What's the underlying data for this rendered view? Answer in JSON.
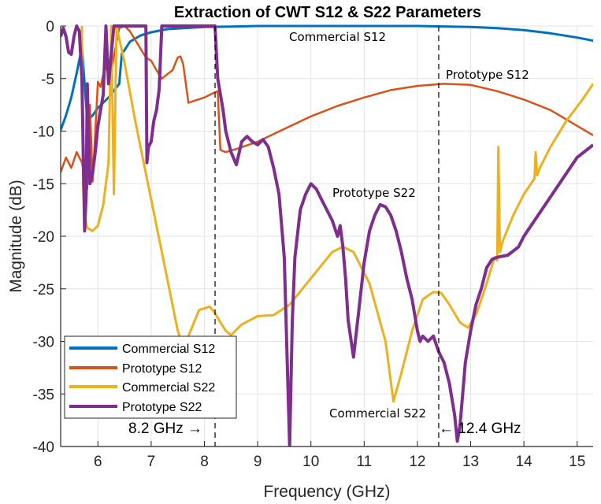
{
  "chart_data": {
    "type": "line",
    "title": "Extraction of CWT S12 & S22 Parameters",
    "xlabel": "Frequency (GHz)",
    "ylabel": "Magnitude (dB)",
    "xlim": [
      5.3,
      15.3
    ],
    "ylim": [
      -40,
      0
    ],
    "xticks": [
      6,
      7,
      8,
      9,
      10,
      11,
      12,
      13,
      14,
      15
    ],
    "yticks": [
      0,
      -5,
      -10,
      -15,
      -20,
      -25,
      -30,
      -35,
      -40
    ],
    "xtick_labels": [
      "6",
      "7",
      "8",
      "9",
      "10",
      "11",
      "12",
      "13",
      "14",
      "15"
    ],
    "ytick_labels": [
      "0",
      "-5",
      "-10",
      "-15",
      "-20",
      "-25",
      "-30",
      "-35",
      "-40"
    ],
    "grid": true,
    "legend_position": "bottom-left",
    "series": [
      {
        "name": "Commercial S12",
        "color": "#0072BD",
        "x": [
          5.3,
          5.4,
          5.5,
          5.6,
          5.7,
          5.8,
          5.9,
          6.0,
          6.2,
          6.4,
          6.45,
          6.5,
          6.6,
          6.8,
          7.0,
          7.3,
          7.6,
          8.0,
          8.5,
          9.0,
          10.0,
          11.0,
          12.0,
          13.0,
          13.5,
          14.0,
          14.5,
          15.0,
          15.3
        ],
        "y": [
          -9.9,
          -8.5,
          -6.8,
          -4.5,
          -2.0,
          -9.0,
          -8.5,
          -7.8,
          -6.8,
          -5.5,
          -2.6,
          -2.3,
          -1.5,
          -0.9,
          -0.6,
          -0.3,
          -0.2,
          -0.1,
          -0.05,
          0,
          0,
          0,
          0,
          -0.1,
          -0.2,
          -0.4,
          -0.7,
          -1.1,
          -1.4
        ]
      },
      {
        "name": "Prototype S12",
        "color": "#D95319",
        "x": [
          5.3,
          5.4,
          5.5,
          5.6,
          5.7,
          5.8,
          5.85,
          5.9,
          6.0,
          6.05,
          6.1,
          6.15,
          6.2,
          6.25,
          6.3,
          6.4,
          6.5,
          6.6,
          6.9,
          7.0,
          7.1,
          7.2,
          7.4,
          7.5,
          7.55,
          7.6,
          7.7,
          8.0,
          8.2,
          8.25,
          8.3,
          8.4,
          8.6,
          9.0,
          9.5,
          10.0,
          10.5,
          11.0,
          11.5,
          12.0,
          12.5,
          13.0,
          13.5,
          14.0,
          14.5,
          15.0,
          15.3
        ],
        "y": [
          -13.9,
          -12.5,
          -13.5,
          -12.0,
          -13.0,
          -15.5,
          -7.5,
          -14.8,
          -5.3,
          -5.8,
          -4.6,
          -4.0,
          -3.2,
          -4.5,
          -2.9,
          -0.2,
          0,
          -0.5,
          -3.0,
          -3.3,
          -4.2,
          -5.0,
          -4.2,
          -3.0,
          -2.9,
          -3.6,
          -7.3,
          -6.8,
          -6.3,
          -6.2,
          -11.8,
          -12.0,
          -11.7,
          -11.0,
          -9.8,
          -8.6,
          -7.6,
          -6.8,
          -6.1,
          -5.7,
          -5.5,
          -5.6,
          -6.2,
          -7.0,
          -8.0,
          -9.5,
          -10.4
        ]
      },
      {
        "name": "Commercial S22",
        "color": "#EDB120",
        "x": [
          5.7,
          5.72,
          5.75,
          5.8,
          5.9,
          6.0,
          6.1,
          6.2,
          6.25,
          6.3,
          6.35,
          6.4,
          6.5,
          6.7,
          7.0,
          7.3,
          7.5,
          7.6,
          7.7,
          7.9,
          8.1,
          8.2,
          8.3,
          8.4,
          8.5,
          8.7,
          9.0,
          9.3,
          9.6,
          10.0,
          10.4,
          10.6,
          10.8,
          11.1,
          11.4,
          11.55,
          11.7,
          11.9,
          12.1,
          12.3,
          12.45,
          12.6,
          12.8,
          12.95,
          13.1,
          13.3,
          13.45,
          13.5,
          13.52,
          13.55,
          13.6,
          13.8,
          14.0,
          14.2,
          14.22,
          14.25,
          14.3,
          14.5,
          14.8,
          15.1,
          15.3
        ],
        "y": [
          0,
          -15.0,
          -18.0,
          -19.2,
          -19.5,
          -19.0,
          -17.0,
          -13.0,
          0,
          -16.0,
          0,
          -1.2,
          -3.5,
          -9.0,
          -16.5,
          -24.0,
          -29.0,
          -30.5,
          -29.5,
          -27.0,
          -26.7,
          -27.3,
          -28.2,
          -29.0,
          -29.4,
          -28.4,
          -27.6,
          -27.5,
          -26.5,
          -24.0,
          -21.5,
          -21.0,
          -21.5,
          -24.5,
          -30.0,
          -35.7,
          -33.0,
          -29.0,
          -26.0,
          -25.3,
          -25.4,
          -26.5,
          -28.2,
          -28.7,
          -27.5,
          -24.5,
          -22.0,
          -22.3,
          -11.5,
          -21.5,
          -20.5,
          -18.0,
          -16.0,
          -14.5,
          -12.0,
          -14.2,
          -13.5,
          -11.5,
          -9.0,
          -7.0,
          -5.5
        ]
      },
      {
        "name": "Prototype S22",
        "color": "#7E2F8E",
        "x": [
          5.3,
          5.35,
          5.4,
          5.45,
          5.5,
          5.55,
          5.6,
          5.65,
          5.7,
          5.75,
          5.78,
          5.8,
          5.85,
          5.9,
          5.95,
          6.0,
          6.05,
          6.1,
          6.15,
          6.2,
          6.3,
          6.9,
          6.92,
          6.95,
          7.0,
          7.05,
          7.1,
          7.15,
          7.2,
          7.9,
          8.2,
          8.25,
          8.3,
          8.35,
          8.4,
          8.5,
          8.6,
          8.7,
          8.8,
          8.9,
          9.0,
          9.1,
          9.2,
          9.3,
          9.4,
          9.5,
          9.55,
          9.6,
          9.65,
          9.7,
          9.8,
          9.9,
          10.0,
          10.1,
          10.2,
          10.3,
          10.4,
          10.5,
          10.55,
          10.6,
          10.65,
          10.7,
          10.8,
          10.9,
          11.0,
          11.1,
          11.2,
          11.3,
          11.4,
          11.5,
          11.6,
          11.7,
          11.8,
          11.9,
          12.0,
          12.05,
          12.1,
          12.2,
          12.3,
          12.4,
          12.5,
          12.6,
          12.7,
          12.75,
          12.8,
          12.85,
          12.9,
          13.0,
          13.1,
          13.2,
          13.3,
          13.4,
          13.5,
          13.7,
          13.9,
          14.0,
          14.2,
          14.4,
          14.6,
          14.8,
          15.0,
          15.3
        ],
        "y": [
          -1.0,
          -0.2,
          -1.0,
          -2.5,
          -2.7,
          -1.0,
          0,
          -0.5,
          -5.0,
          -19.5,
          -16.0,
          -5.5,
          -15.0,
          -14.0,
          -12.0,
          -9.5,
          -8.0,
          -6.5,
          0,
          -5.5,
          0,
          0,
          -13.0,
          -11.5,
          -11.0,
          -9.0,
          -8.0,
          -6.0,
          0,
          0,
          0,
          -5.0,
          -6.5,
          -8.0,
          -10.0,
          -12.0,
          -13.2,
          -11.0,
          -10.5,
          -11.0,
          -11.3,
          -10.8,
          -11.5,
          -13.5,
          -16.0,
          -22.0,
          -31.0,
          -40.0,
          -28.0,
          -22.0,
          -17.5,
          -16.0,
          -15.0,
          -15.5,
          -16.5,
          -17.5,
          -18.5,
          -20.0,
          -19.0,
          -21.0,
          -24.0,
          -28.0,
          -31.5,
          -27.0,
          -22.5,
          -19.5,
          -18.0,
          -17.0,
          -17.2,
          -18.0,
          -19.5,
          -21.5,
          -24.0,
          -26.0,
          -29.0,
          -30.0,
          -29.5,
          -30.0,
          -29.5,
          -31.0,
          -32.0,
          -34.0,
          -37.0,
          -39.5,
          -38.0,
          -35.0,
          -32.0,
          -29.0,
          -26.5,
          -25.0,
          -23.0,
          -22.2,
          -22.0,
          -21.8,
          -21.0,
          -20.0,
          -18.5,
          -17.0,
          -15.5,
          -14.0,
          -12.5,
          -11.3
        ]
      }
    ],
    "legend": [
      "Commercial S12",
      "Prototype S12",
      "Commercial S22",
      "Prototype S22"
    ],
    "markers": [
      {
        "x": 8.2,
        "label": "8.2 GHz →"
      },
      {
        "x": 12.4,
        "label": "← 12.4 GHz"
      }
    ],
    "annotations": [
      {
        "text": "Commercial S12",
        "near": [
          11.0,
          -0.3
        ]
      },
      {
        "text": "Prototype S12",
        "near": [
          13.5,
          -4.8
        ]
      },
      {
        "text": "Prototype S22",
        "near": [
          11.3,
          -16.0
        ]
      },
      {
        "text": "Commercial S22",
        "near": [
          11.3,
          -37.0
        ]
      }
    ]
  }
}
